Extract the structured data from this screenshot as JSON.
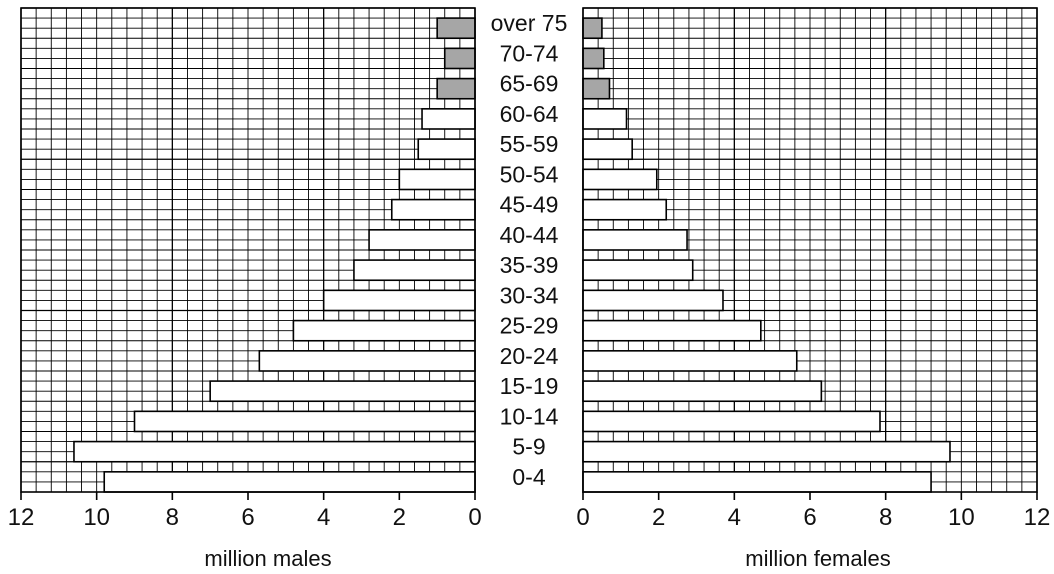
{
  "chart_data": {
    "type": "bar",
    "orientation": "horizontal",
    "layout": "population-pyramid",
    "categories": [
      "over 75",
      "70-74",
      "65-69",
      "60-64",
      "55-59",
      "50-54",
      "45-49",
      "40-44",
      "35-39",
      "30-34",
      "25-29",
      "20-24",
      "15-19",
      "10-14",
      "5-9",
      "0-4"
    ],
    "series": [
      {
        "side": "left",
        "values": [
          1.0,
          0.8,
          1.0,
          1.4,
          1.5,
          2.0,
          2.2,
          2.8,
          3.2,
          4.0,
          4.8,
          5.7,
          7.0,
          9.0,
          10.6,
          9.8
        ]
      },
      {
        "side": "right",
        "values": [
          0.5,
          0.55,
          0.7,
          1.15,
          1.3,
          1.95,
          2.2,
          2.75,
          2.9,
          3.7,
          4.7,
          5.65,
          6.3,
          7.85,
          9.7,
          9.2
        ]
      }
    ],
    "highlight_categories": [
      "over 75",
      "70-74",
      "65-69"
    ],
    "highlight_color": "#a6a6a6",
    "bar_color": "#ffffff",
    "x_ticks": [
      0,
      2,
      4,
      6,
      8,
      10,
      12
    ],
    "xlim": [
      0,
      12
    ],
    "left_xlabel": "million males",
    "right_xlabel": "million females",
    "grid": true,
    "minor_grid_step": 0.4,
    "major_grid_step": 4
  }
}
